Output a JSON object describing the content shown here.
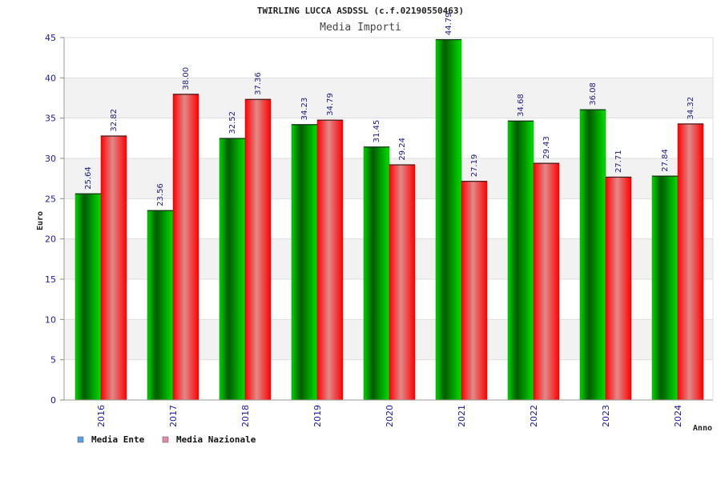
{
  "chart_data": {
    "type": "bar",
    "title": "TWIRLING LUCCA ASDSSL (c.f.02190550463)",
    "subtitle": "Media Importi",
    "xlabel": "Anno",
    "ylabel": "Euro",
    "ylim": [
      0,
      45
    ],
    "yticks": [
      "0",
      "5",
      "10",
      "15",
      "20",
      "25",
      "30",
      "35",
      "40",
      "45"
    ],
    "categories": [
      "2016",
      "2017",
      "2018",
      "2019",
      "2020",
      "2021",
      "2022",
      "2023",
      "2024"
    ],
    "series": [
      {
        "name": "Media Ente",
        "color": "#00b400",
        "legend_color": "#5aa0e6",
        "values": [
          25.64,
          23.56,
          32.52,
          34.23,
          31.45,
          44.79,
          34.68,
          36.08,
          27.84
        ],
        "labels": [
          "25.64",
          "23.56",
          "32.52",
          "34.23",
          "31.45",
          "44.79",
          "34.68",
          "36.08",
          "27.84"
        ]
      },
      {
        "name": "Media Nazionale",
        "color": "#ff1a1a",
        "legend_color": "#e08aa8",
        "values": [
          32.82,
          38.0,
          37.36,
          34.79,
          29.24,
          27.19,
          29.43,
          27.71,
          34.32
        ],
        "labels": [
          "32.82",
          "38.00",
          "37.36",
          "34.79",
          "29.24",
          "27.19",
          "29.43",
          "27.71",
          "34.32"
        ]
      }
    ],
    "grid": true,
    "legend_position": "bottom-left"
  }
}
